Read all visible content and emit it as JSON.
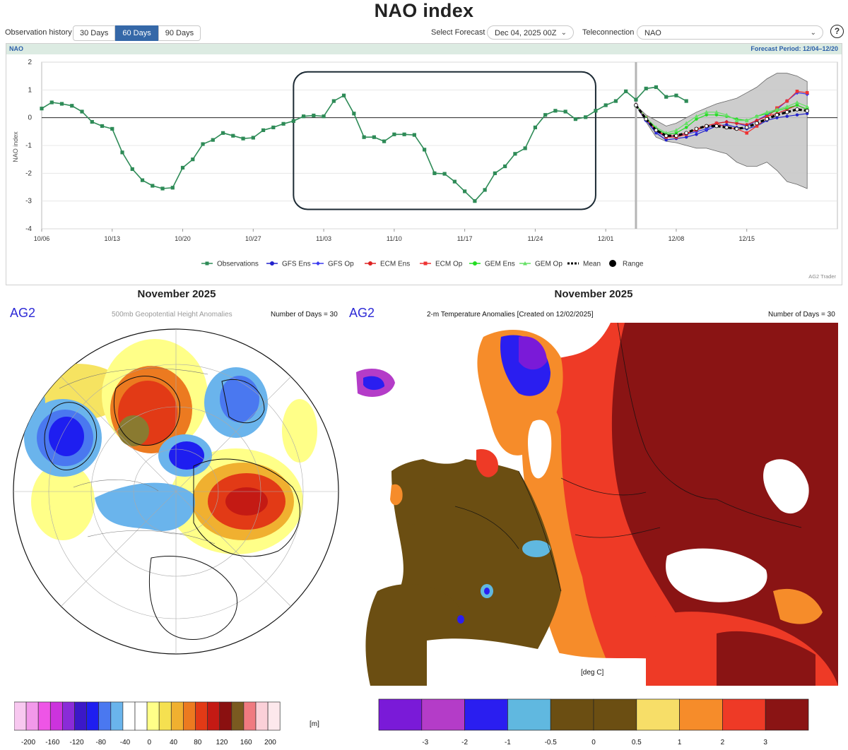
{
  "page_title": "NAO index",
  "controls": {
    "observation_history_label": "Observation history",
    "range_buttons": [
      {
        "label": "30 Days",
        "active": false
      },
      {
        "label": "60 Days",
        "active": true
      },
      {
        "label": "90 Days",
        "active": false
      }
    ],
    "select_forecast_label": "Select Forecast",
    "forecast_value": "Dec 04, 2025 00Z",
    "teleconnection_label": "Teleconnection",
    "teleconnection_value": "NAO",
    "help_icon": "question-circle-icon",
    "chevron_icon": "chevron-down-icon"
  },
  "panel": {
    "name": "NAO",
    "forecast_period": "Forecast Period:  12/04–12/20",
    "credit": "AG2 Trader"
  },
  "chart_data": {
    "type": "line",
    "title": "NAO index",
    "ylabel": "NAO index",
    "xlabel": "",
    "ylim": [
      -4,
      2
    ],
    "yticks": [
      -4,
      -3,
      -2,
      -1,
      0,
      1,
      2
    ],
    "xlim": [
      "10/06",
      "12/20"
    ],
    "xticks": [
      "10/06",
      "10/13",
      "10/20",
      "10/27",
      "11/03",
      "11/10",
      "11/17",
      "11/24",
      "12/01",
      "12/08",
      "12/15"
    ],
    "forecast_start": "12/04",
    "highlight_box": {
      "from": "10/31",
      "to": "11/30",
      "ymin": -3.3,
      "ymax": 1.65
    },
    "legend": [
      "Observations",
      "GFS Ens",
      "GFS Op",
      "ECM Ens",
      "ECM Op",
      "GEM Ens",
      "GEM Op",
      "Mean",
      "Range"
    ],
    "colors": {
      "Observations": "#2e8b57",
      "GFS Ens": "#2222cc",
      "GFS Op": "#3a3af0",
      "ECM Ens": "#dd2222",
      "ECM Op": "#ee3333",
      "GEM Ens": "#22dd22",
      "GEM Op": "#66e066",
      "Mean": "#000000",
      "Range": "#c8c8c8"
    },
    "observations": {
      "start": "10/06",
      "values": [
        0.33,
        0.55,
        0.5,
        0.43,
        0.22,
        -0.15,
        -0.3,
        -0.4,
        -1.25,
        -1.85,
        -2.25,
        -2.45,
        -2.55,
        -2.52,
        -1.8,
        -1.5,
        -0.95,
        -0.8,
        -0.55,
        -0.65,
        -0.75,
        -0.72,
        -0.45,
        -0.35,
        -0.22,
        -0.12,
        0.05,
        0.08,
        0.05,
        0.6,
        0.8,
        0.15,
        -0.7,
        -0.7,
        -0.85,
        -0.6,
        -0.6,
        -0.62,
        -1.15,
        -2.0,
        -2.02,
        -2.3,
        -2.65,
        -3.0,
        -2.6,
        -2.0,
        -1.75,
        -1.3,
        -1.1,
        -0.35,
        0.1,
        0.25,
        0.22,
        -0.05,
        0.02,
        0.25,
        0.45,
        0.6,
        0.95,
        0.65,
        1.05,
        1.1,
        0.75,
        0.8,
        0.6
      ]
    },
    "forecast": {
      "start": "12/04",
      "series": [
        {
          "name": "GFS Ens",
          "values": [
            0.45,
            -0.1,
            -0.55,
            -0.8,
            -0.75,
            -0.7,
            -0.6,
            -0.45,
            -0.3,
            -0.25,
            -0.35,
            -0.4,
            -0.3,
            -0.1,
            0.0,
            0.05,
            0.1,
            0.15
          ]
        },
        {
          "name": "GFS Op",
          "values": [
            0.45,
            -0.1,
            -0.5,
            -0.7,
            -0.65,
            -0.6,
            -0.5,
            -0.4,
            -0.2,
            -0.15,
            -0.2,
            -0.3,
            -0.1,
            0.1,
            0.3,
            0.6,
            0.9,
            0.85
          ]
        },
        {
          "name": "ECM Ens",
          "values": [
            0.45,
            -0.05,
            -0.45,
            -0.65,
            -0.65,
            -0.55,
            -0.45,
            -0.3,
            -0.2,
            -0.15,
            -0.2,
            -0.25,
            -0.1,
            0.05,
            0.15,
            0.3,
            0.45,
            0.3
          ]
        },
        {
          "name": "ECM Op",
          "values": [
            0.45,
            0.0,
            -0.45,
            -0.7,
            -0.7,
            -0.6,
            -0.4,
            -0.3,
            -0.2,
            -0.35,
            -0.4,
            -0.55,
            -0.3,
            0.0,
            0.35,
            0.6,
            0.95,
            0.9
          ]
        },
        {
          "name": "GEM Ens",
          "values": [
            0.45,
            0.0,
            -0.4,
            -0.6,
            -0.55,
            -0.35,
            -0.05,
            0.1,
            0.1,
            0.05,
            -0.05,
            -0.1,
            0.05,
            0.15,
            0.25,
            0.35,
            0.45,
            0.3
          ]
        },
        {
          "name": "GEM Op",
          "values": [
            0.45,
            0.0,
            -0.35,
            -0.55,
            -0.45,
            -0.2,
            0.05,
            0.2,
            0.2,
            0.1,
            -0.1,
            -0.1,
            0.05,
            0.2,
            0.3,
            0.4,
            0.55,
            0.4
          ]
        },
        {
          "name": "Mean",
          "values": [
            0.45,
            -0.05,
            -0.45,
            -0.65,
            -0.65,
            -0.55,
            -0.4,
            -0.3,
            -0.3,
            -0.35,
            -0.4,
            -0.35,
            -0.2,
            -0.05,
            0.1,
            0.2,
            0.3,
            0.25
          ]
        }
      ],
      "range_upper": [
        0.45,
        0.1,
        -0.1,
        -0.3,
        -0.2,
        0.0,
        0.2,
        0.35,
        0.5,
        0.6,
        0.7,
        0.9,
        1.1,
        1.4,
        1.6,
        1.6,
        1.5,
        1.3
      ],
      "range_lower": [
        0.45,
        -0.15,
        -0.7,
        -0.85,
        -0.9,
        -1.0,
        -1.1,
        -1.1,
        -1.2,
        -1.3,
        -1.6,
        -1.75,
        -1.75,
        -1.6,
        -1.9,
        -2.3,
        -2.4,
        -2.55
      ]
    }
  },
  "left_map": {
    "title": "November 2025",
    "logo": "AG2",
    "subtitle": "500mb Geopotential Height Anomalies",
    "days": "Number of Days = 30",
    "unit": "[m]",
    "colorbar_labels": [
      "-200",
      "-160",
      "-120",
      "-80",
      "-40",
      "0",
      "40",
      "80",
      "120",
      "160",
      "200"
    ],
    "colorbar_colors": [
      "#f8c8f0",
      "#f299ea",
      "#ee55e6",
      "#cc33dd",
      "#8a2bd8",
      "#3b18c8",
      "#1e1ef0",
      "#4a78f0",
      "#6ab4ec",
      "#ffffff",
      "#ffffff",
      "#ffff88",
      "#f5e050",
      "#f0b030",
      "#ec7a20",
      "#e23a16",
      "#c41a14",
      "#8a1010",
      "#7a5a20",
      "#f07a80",
      "#fbd0d8",
      "#fde8ec"
    ]
  },
  "right_map": {
    "title": "November 2025",
    "logo": "AG2",
    "subtitle": "2-m Temperature Anomalies [Created on 12/02/2025]",
    "days": "Number of Days = 30",
    "unit": "[deg C]",
    "colorbar_labels": [
      "-3",
      "-2",
      "-1",
      "-0.5",
      "0",
      "0.5",
      "1",
      "2",
      "3"
    ],
    "colorbar_colors": [
      "#7a1ad8",
      "#b43cc8",
      "#2a1ef0",
      "#60b8e0",
      "#6b4e12",
      "#6b4e12",
      "#f7de68",
      "#f68c2a",
      "#ee3a26",
      "#8a1414"
    ]
  }
}
